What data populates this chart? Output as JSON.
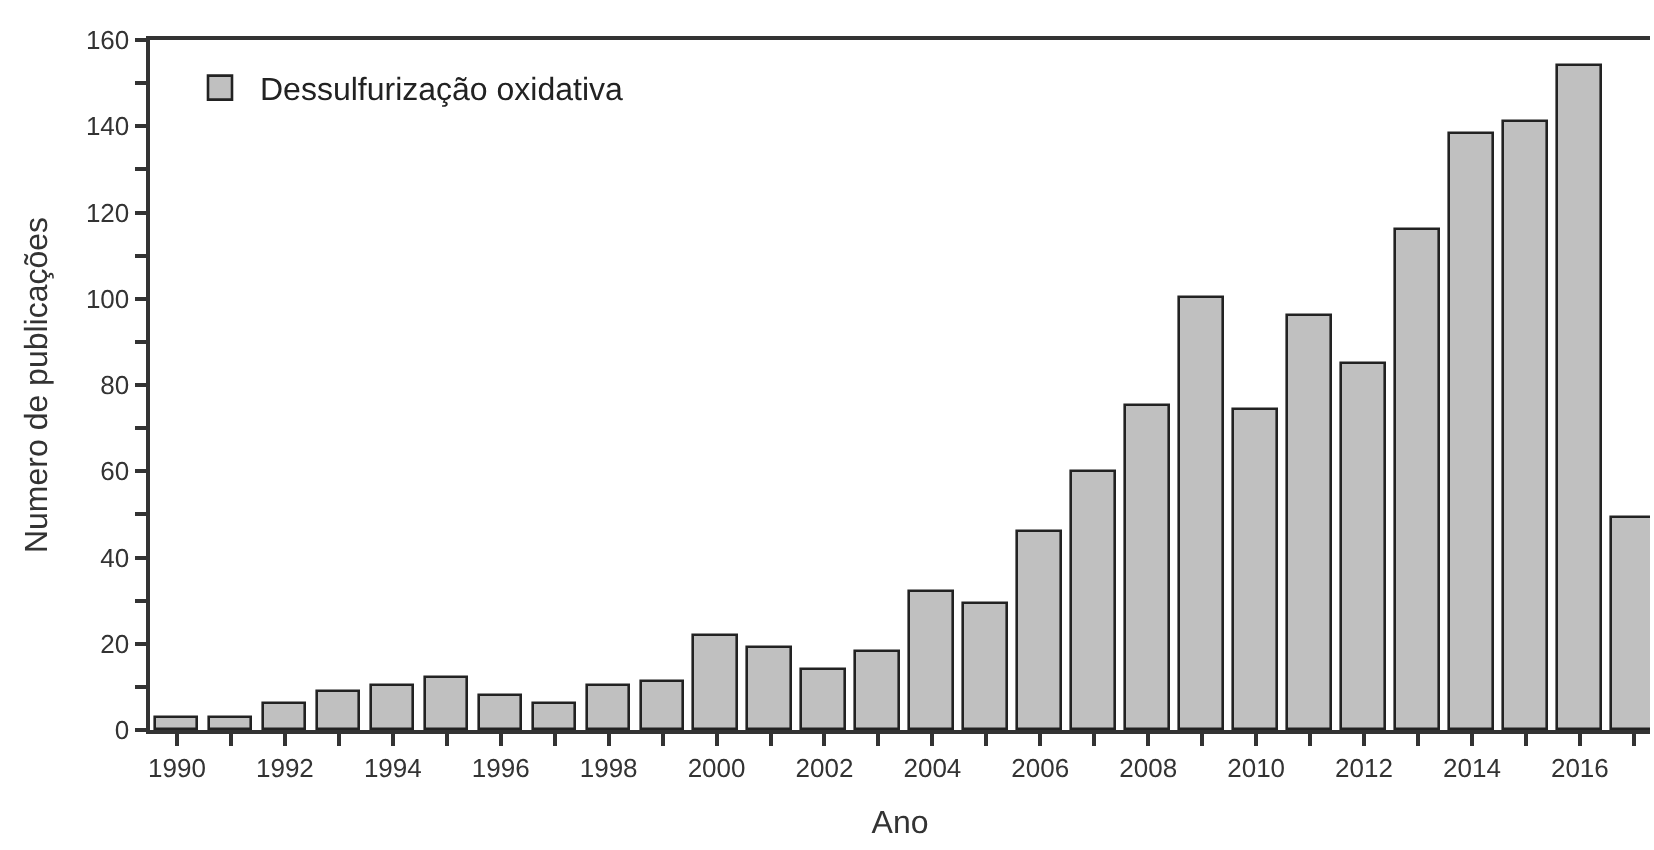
{
  "chart_data": {
    "type": "bar",
    "xlabel": "Ano",
    "ylabel": "Numero de publicações",
    "x": [
      1990,
      1991,
      1992,
      1993,
      1994,
      1995,
      1996,
      1997,
      1998,
      1999,
      2000,
      2001,
      2002,
      2003,
      2004,
      2005,
      2006,
      2007,
      2008,
      2009,
      2010,
      2011,
      2012,
      2013,
      2014,
      2015,
      2016,
      2017
    ],
    "series": [
      {
        "name": "Dessulfurização oxidativa",
        "color": "#c0c0c0",
        "values": [
          3,
          3,
          6,
          9,
          10,
          12,
          8,
          6,
          10,
          11,
          22,
          19,
          14,
          18,
          32,
          29,
          46,
          60,
          75,
          100,
          74,
          96,
          85,
          116,
          138,
          141,
          154,
          49
        ]
      }
    ],
    "xlim": [
      1989.5,
      2017.3
    ],
    "xticks": [
      1990,
      {
        "value": 1991,
        "label": null
      },
      1992,
      {
        "value": 1993,
        "label": null
      },
      1994,
      {
        "value": 1995,
        "label": null
      },
      1996,
      {
        "value": 1997,
        "label": null
      },
      1998,
      {
        "value": 1999,
        "label": null
      },
      2000,
      {
        "value": 2001,
        "label": null
      },
      2002,
      {
        "value": 2003,
        "label": null
      },
      2004,
      {
        "value": 2005,
        "label": null
      },
      2006,
      {
        "value": 2007,
        "label": null
      },
      2008,
      {
        "value": 2009,
        "label": null
      },
      2010,
      {
        "value": 2011,
        "label": null
      },
      2012,
      {
        "value": 2013,
        "label": null
      },
      2014,
      {
        "value": 2015,
        "label": null
      },
      2016,
      {
        "value": 2017,
        "label": null
      }
    ],
    "ylim": [
      0,
      160
    ],
    "yticks": [
      0,
      {
        "value": 10,
        "label": null
      },
      20,
      {
        "value": 30,
        "label": null
      },
      40,
      {
        "value": 50,
        "label": null
      },
      60,
      {
        "value": 70,
        "label": null
      },
      80,
      {
        "value": 90,
        "label": null
      },
      100,
      {
        "value": 110,
        "label": null
      },
      120,
      {
        "value": 130,
        "label": null
      },
      140,
      {
        "value": 150,
        "label": null
      },
      160
    ],
    "legend": "top left"
  }
}
